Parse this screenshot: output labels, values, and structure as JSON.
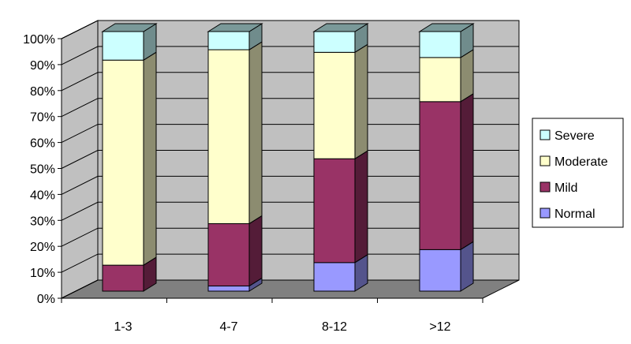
{
  "chart_data": {
    "type": "bar",
    "stacked": "percent",
    "three_d": true,
    "categories": [
      "1-3",
      "4-7",
      "8-12",
      ">12"
    ],
    "series": [
      {
        "name": "Normal",
        "values": [
          0,
          2,
          11,
          16
        ]
      },
      {
        "name": "Mild",
        "values": [
          10,
          24,
          40,
          57
        ]
      },
      {
        "name": "Moderate",
        "values": [
          79,
          67,
          41,
          17
        ]
      },
      {
        "name": "Severe",
        "values": [
          11,
          7,
          8,
          10
        ]
      }
    ],
    "colors": {
      "Normal": "#9999ff",
      "Mild": "#993366",
      "Moderate": "#ffffcc",
      "Severe": "#ccffff"
    },
    "ylim": [
      0,
      100
    ],
    "yticks": [
      "0%",
      "10%",
      "20%",
      "30%",
      "40%",
      "50%",
      "60%",
      "70%",
      "80%",
      "90%",
      "100%"
    ],
    "grid": true,
    "legend": "right",
    "title": "",
    "xlabel": "",
    "ylabel": ""
  }
}
